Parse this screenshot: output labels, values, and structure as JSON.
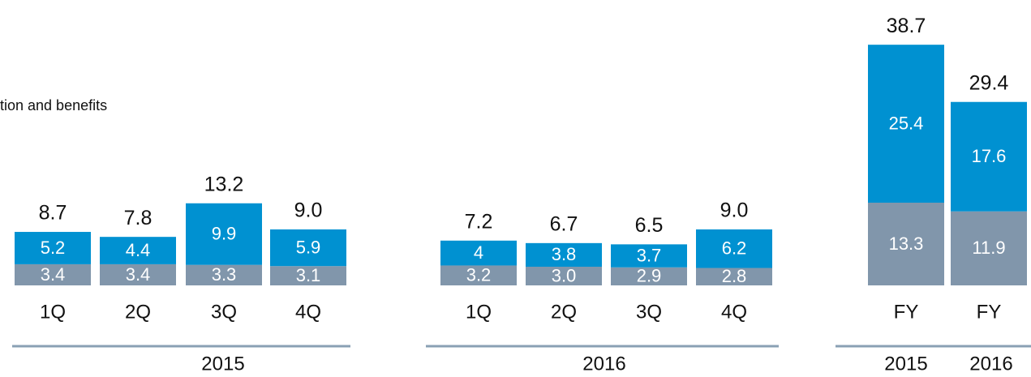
{
  "chart_data": {
    "type": "stacked_bar",
    "annotation": "tion and benefits",
    "categories": [
      "1Q",
      "2Q",
      "3Q",
      "4Q",
      "1Q",
      "2Q",
      "3Q",
      "4Q",
      "FY",
      "FY"
    ],
    "groups": [
      "2015",
      "2016",
      "2015",
      "2016"
    ],
    "series": [
      {
        "color": "#8196ab",
        "values": [
          3.4,
          3.4,
          3.3,
          3.1,
          3.2,
          3.0,
          2.9,
          2.8,
          13.3,
          11.9
        ],
        "value_labels": [
          "3.4",
          "3.4",
          "3.3",
          "3.1",
          "3.2",
          "3.0",
          "2.9",
          "2.8",
          "13.3",
          "11.9"
        ]
      },
      {
        "color": "#0091d1",
        "values": [
          5.2,
          4.4,
          9.9,
          5.9,
          4.0,
          3.8,
          3.7,
          6.2,
          25.4,
          17.6
        ]
      }
    ],
    "totals": [
      8.7,
      7.8,
      13.2,
      9.0,
      7.2,
      6.7,
      6.5,
      9.0,
      38.7,
      29.4
    ],
    "total_labels": [
      "8.7",
      "7.8",
      "13.2",
      "9.0",
      "7.2",
      "6.7",
      "6.5",
      "9.0",
      "38.7",
      "29.4"
    ]
  }
}
